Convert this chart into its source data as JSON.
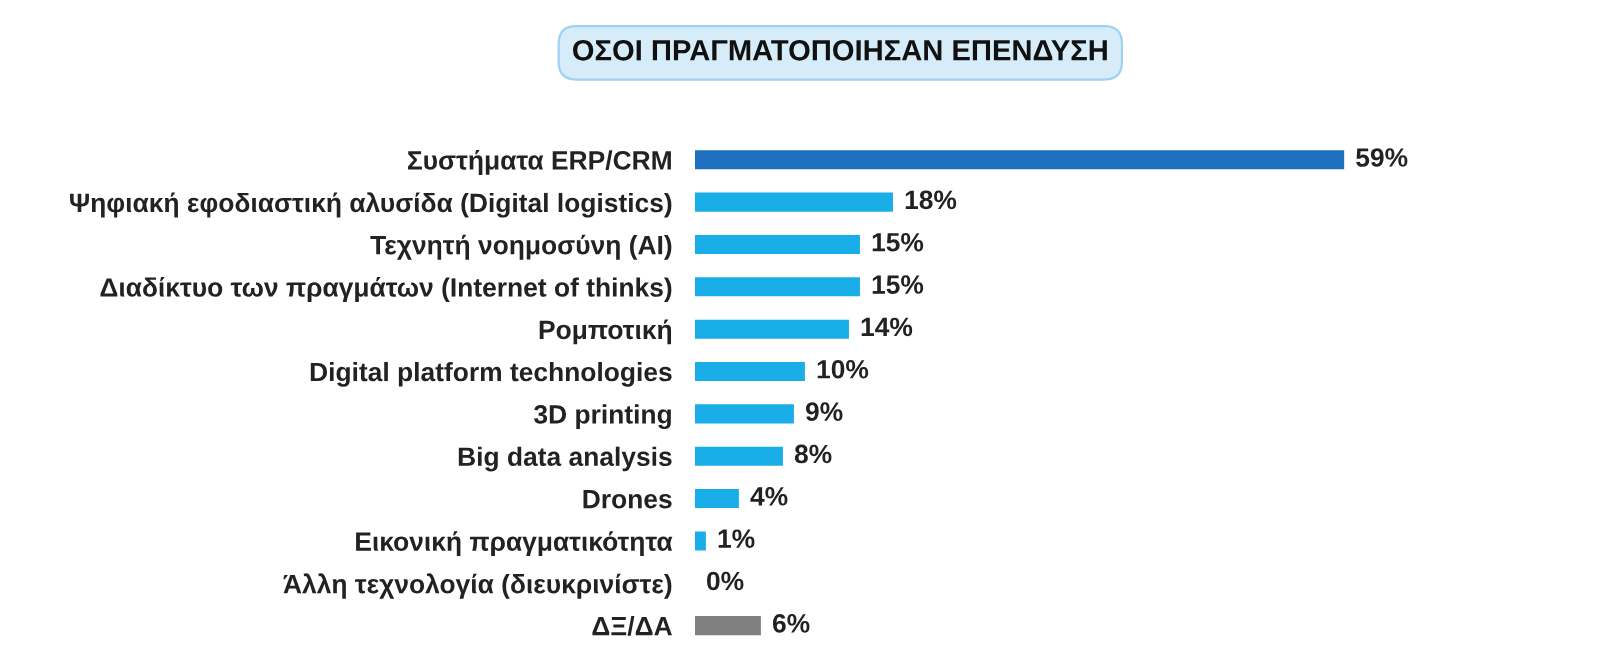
{
  "chart_data": {
    "type": "bar",
    "orientation": "horizontal",
    "title": "ΟΣΟΙ ΠΡΑΓΜΑΤΟΠΟΙΗΣΑΝ ΕΠΕΝΔΥΣΗ",
    "categories": [
      "Συστήματα ERP/CRM",
      "Ψηφιακή εφοδιαστική αλυσίδα (Digital logistics)",
      "Τεχνητή νοημοσύνη (AI)",
      "Διαδίκτυο των πραγμάτων (Internet of thinks)",
      "Ρομποτική",
      "Digital platform technologies",
      "3D printing",
      "Big data analysis",
      "Drones",
      "Εικονική πραγματικότητα",
      "Άλλη τεχνολογία (διευκρινίστε)",
      "ΔΞ/ΔΑ"
    ],
    "values": [
      59,
      18,
      15,
      15,
      14,
      10,
      9,
      8,
      4,
      1,
      0,
      6
    ],
    "colors": [
      "#1f6fc0",
      "#19aee8",
      "#19aee8",
      "#19aee8",
      "#19aee8",
      "#19aee8",
      "#19aee8",
      "#19aee8",
      "#19aee8",
      "#19aee8",
      "#19aee8",
      "#808080"
    ],
    "value_labels": [
      "59%",
      "18%",
      "15%",
      "15%",
      "14%",
      "10%",
      "9%",
      "8%",
      "4%",
      "1%",
      "0%",
      "6%"
    ]
  }
}
